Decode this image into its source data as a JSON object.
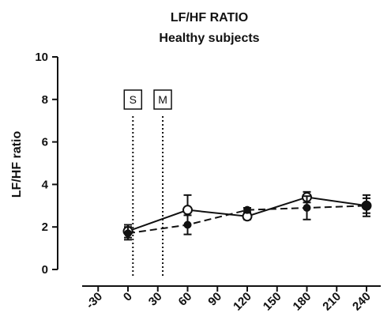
{
  "chart_data": {
    "type": "line",
    "title": "LF/HF RATIO",
    "subtitle": "Healthy subjects",
    "ylabel": "LF/HF ratio",
    "xlabel": "",
    "ylim": [
      0,
      10
    ],
    "yticks": [
      0,
      2,
      4,
      6,
      8,
      10
    ],
    "xlim": [
      -30,
      240
    ],
    "xticks": [
      -30,
      0,
      30,
      60,
      90,
      120,
      150,
      180,
      210,
      240
    ],
    "grid": false,
    "series": [
      {
        "marker": "open-circle",
        "line": "solid",
        "x": [
          0,
          60,
          120,
          180,
          240
        ],
        "values": [
          1.8,
          2.8,
          2.5,
          3.4,
          3.0
        ],
        "err": [
          0.3,
          0.7,
          0.15,
          0.25,
          0.5
        ]
      },
      {
        "marker": "filled-circle",
        "line": "dashed",
        "x": [
          0,
          60,
          120,
          180,
          240
        ],
        "values": [
          1.7,
          2.1,
          2.8,
          2.9,
          3.0
        ],
        "err": [
          0.3,
          0.45,
          0.1,
          0.55,
          0.35
        ]
      }
    ],
    "annotations": [
      {
        "label": "S",
        "x": 5,
        "style": "dotted-vertical"
      },
      {
        "label": "M",
        "x": 35,
        "style": "dotted-vertical"
      }
    ]
  }
}
